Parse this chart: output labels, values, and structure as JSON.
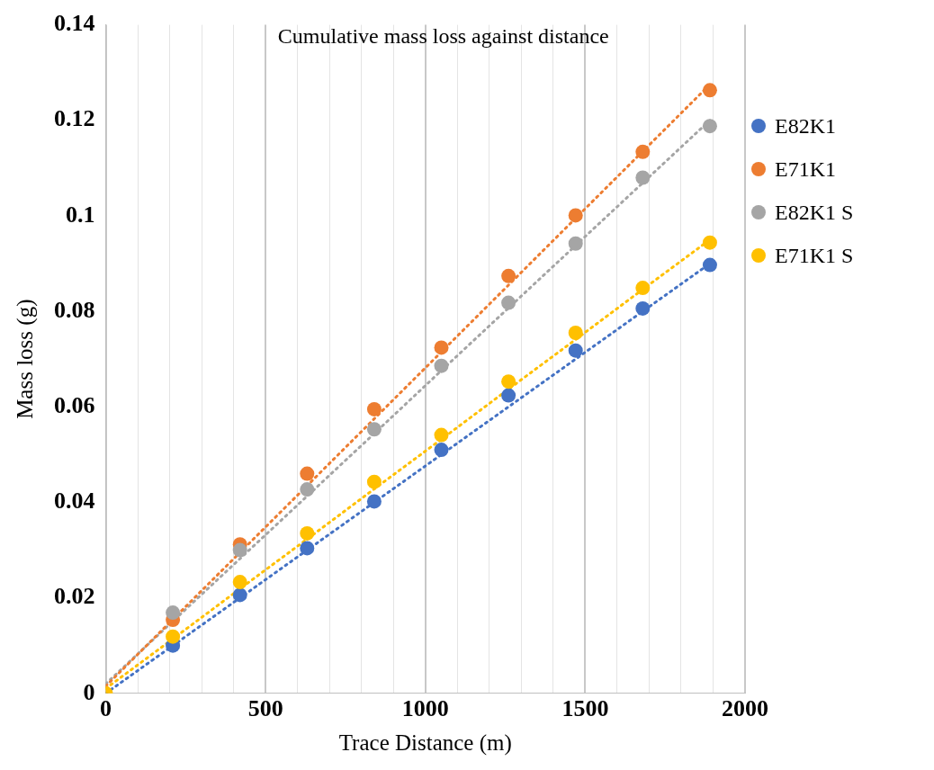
{
  "chart_data": {
    "type": "scatter",
    "title": "Cumulative mass loss against distance",
    "xlabel": "Trace Distance (m)",
    "ylabel": "Mass loss (g)",
    "x": [
      0,
      210,
      420,
      630,
      840,
      1050,
      1260,
      1470,
      1680,
      1890
    ],
    "series": [
      {
        "name": "E82K1",
        "color": "#4472c4",
        "values": [
          null,
          0.01,
          0.0206,
          0.0304,
          0.0402,
          0.051,
          0.0624,
          0.0718,
          0.0806,
          0.0897
        ]
      },
      {
        "name": "E71K1",
        "color": "#ed7d31",
        "values": [
          null,
          0.0154,
          0.0312,
          0.046,
          0.0595,
          0.0724,
          0.0874,
          0.1001,
          0.1134,
          0.1263
        ]
      },
      {
        "name": "E82K1 S",
        "color": "#a5a5a5",
        "values": [
          null,
          0.0169,
          0.03,
          0.0427,
          0.0553,
          0.0686,
          0.0818,
          0.0942,
          0.108,
          0.1188
        ]
      },
      {
        "name": "E71K1 S",
        "color": "#ffc000",
        "values": [
          0,
          0.0119,
          0.0233,
          0.0335,
          0.0443,
          0.0541,
          0.0653,
          0.0755,
          0.0849,
          0.0944
        ]
      },
      {
        "type": "line",
        "color": "#4472c4",
        "values": [
          0,
          0.01,
          0.02,
          0.03,
          0.04,
          0.05,
          0.06,
          0.07,
          0.08,
          0.09
        ],
        "line_style": "dotted",
        "marker": "none"
      },
      {
        "type": "line",
        "color": "#ed7d31",
        "values": [
          0.0015,
          0.0155,
          0.0295,
          0.0435,
          0.0575,
          0.0715,
          0.0855,
          0.0995,
          0.1135,
          0.1275
        ],
        "line_style": "dotted",
        "marker": "none"
      },
      {
        "type": "line",
        "color": "#a5a5a5",
        "values": [
          0.002,
          0.0151,
          0.0282,
          0.0413,
          0.0544,
          0.0676,
          0.0807,
          0.0938,
          0.1069,
          0.12
        ],
        "line_style": "dotted",
        "marker": "none"
      },
      {
        "type": "line",
        "color": "#ffc000",
        "values": [
          0.001,
          0.0114,
          0.0219,
          0.0323,
          0.0428,
          0.0532,
          0.0637,
          0.0741,
          0.0846,
          0.095
        ],
        "line_style": "dotted",
        "marker": "none"
      }
    ],
    "marker": "circle",
    "xlim": [
      0,
      2000
    ],
    "ylim": [
      0,
      0.14
    ],
    "xticks": [
      0,
      {
        "value": 100,
        "label": null
      },
      {
        "value": 200,
        "label": null
      },
      {
        "value": 300,
        "label": null
      },
      {
        "value": 400,
        "label": null
      },
      500,
      {
        "value": 600,
        "label": null
      },
      {
        "value": 700,
        "label": null
      },
      {
        "value": 800,
        "label": null
      },
      {
        "value": 900,
        "label": null
      },
      1000,
      {
        "value": 1100,
        "label": null
      },
      {
        "value": 1200,
        "label": null
      },
      {
        "value": 1300,
        "label": null
      },
      {
        "value": 1400,
        "label": null
      },
      1500,
      {
        "value": 1600,
        "label": null
      },
      {
        "value": 1700,
        "label": null
      },
      {
        "value": 1800,
        "label": null
      },
      {
        "value": 1900,
        "label": null
      },
      2000
    ],
    "yticks": [
      0,
      0.02,
      0.04,
      0.06,
      0.08,
      0.1,
      0.12,
      0.14
    ],
    "grid": "x",
    "legend": "right"
  }
}
